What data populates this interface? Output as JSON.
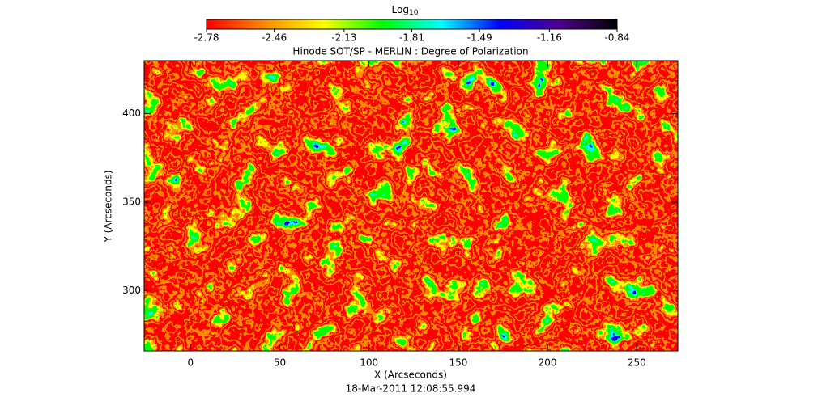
{
  "chart_data": {
    "type": "image",
    "title": "Hinode SOT/SP - MERLIN : Degree of Polarization",
    "subtitle": "18-Mar-2011 12:08:55.994",
    "x_label": "X (Arcseconds)",
    "y_label": "Y (Arcseconds)",
    "xlim": [
      -26,
      273
    ],
    "ylim": [
      266,
      430
    ],
    "xticks": [
      0,
      50,
      100,
      150,
      200,
      250
    ],
    "yticks": [
      300,
      350,
      400
    ],
    "colorbar": {
      "label": "Log",
      "label_subscript": "10",
      "lim": [
        -2.78,
        -0.84
      ],
      "ticks": [
        -2.78,
        -2.46,
        -2.13,
        -1.81,
        -1.49,
        -1.16,
        -0.84
      ],
      "colors": [
        "#ff0000",
        "#ff8c00",
        "#ffff00",
        "#00ff00",
        "#00ffff",
        "#0000ff",
        "#500090",
        "#000000"
      ]
    }
  }
}
